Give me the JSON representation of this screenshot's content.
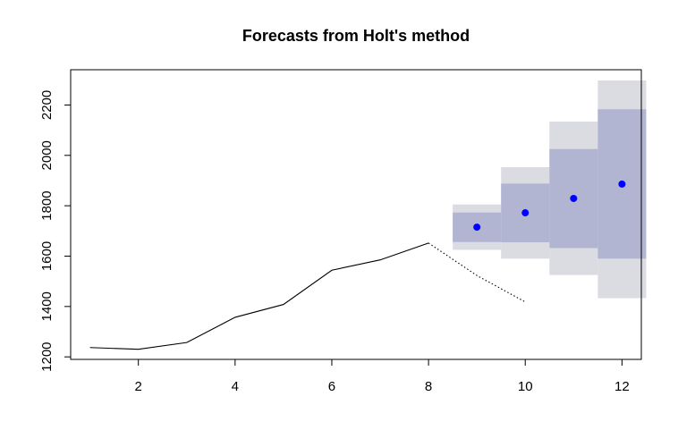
{
  "chart_data": {
    "type": "line",
    "title": "Forecasts from Holt's method",
    "xlabel": "",
    "ylabel": "",
    "xlim": [
      0.6,
      12.4
    ],
    "ylim": [
      1190,
      2340
    ],
    "x_ticks": [
      2,
      4,
      6,
      8,
      10,
      12
    ],
    "y_ticks": [
      1200,
      1400,
      1600,
      1800,
      2000,
      2200
    ],
    "grid": false,
    "series": [
      {
        "role": "observed",
        "style": "solid",
        "color": "#000000",
        "x": [
          1,
          2,
          3,
          4,
          5,
          6,
          7,
          8
        ],
        "y": [
          1237,
          1230,
          1257,
          1357,
          1408,
          1544,
          1585,
          1652
        ]
      },
      {
        "role": "dotted-continuation",
        "style": "dotted",
        "color": "#000000",
        "x": [
          8,
          9,
          10
        ],
        "y": [
          1652,
          1523,
          1418
        ]
      },
      {
        "role": "point-forecast",
        "style": "points",
        "color": "#0000ff",
        "x": [
          9,
          10,
          11,
          12
        ],
        "y": [
          1715,
          1772,
          1829,
          1886
        ]
      }
    ],
    "intervals": [
      {
        "level": 95,
        "color": "#dbdbe2",
        "x": [
          9,
          10,
          11,
          12
        ],
        "lower": [
          1625,
          1590,
          1525,
          1433
        ],
        "upper": [
          1805,
          1953,
          2134,
          2340
        ]
      },
      {
        "level": 80,
        "color": "#b1b5d2",
        "x": [
          9,
          10,
          11,
          12
        ],
        "lower": [
          1656,
          1655,
          1632,
          1590
        ],
        "upper": [
          1773,
          1888,
          2025,
          2183
        ]
      }
    ]
  }
}
